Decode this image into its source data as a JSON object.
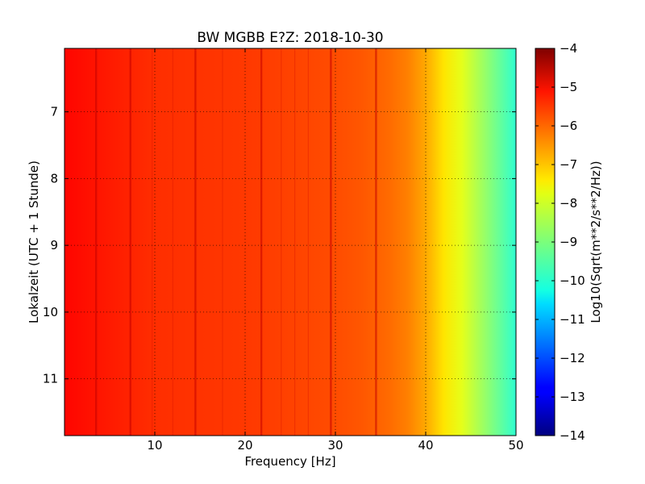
{
  "chart_data": {
    "type": "heatmap",
    "title": "BW MGBB E?Z: 2018-10-30",
    "xlabel": "Frequency [Hz]",
    "ylabel": "Lokalzeit (UTC + 1 Stunde)",
    "xlim": [
      0,
      50
    ],
    "ylim": [
      11.85,
      6.05
    ],
    "x_ticks": [
      10,
      20,
      30,
      40,
      50
    ],
    "y_ticks": [
      7,
      8,
      9,
      10,
      11
    ],
    "grid": true,
    "colormap": "jet",
    "colorbar": {
      "label": "Log10(Sqrt(m**2/s**2/Hz))",
      "range": [
        -14,
        -4
      ],
      "ticks": [
        -4,
        -5,
        -6,
        -7,
        -8,
        -9,
        -10,
        -11,
        -12,
        -13,
        -14
      ]
    },
    "spectrum_profile": {
      "frequency_hz": [
        0,
        5,
        10,
        15,
        20,
        25,
        30,
        33,
        36,
        38,
        40,
        42,
        44,
        46,
        48,
        50
      ],
      "log10_amplitude": [
        -5.3,
        -5.5,
        -5.7,
        -5.75,
        -5.8,
        -5.9,
        -6.0,
        -6.1,
        -6.3,
        -6.5,
        -6.9,
        -7.5,
        -8.0,
        -8.6,
        -9.2,
        -9.8
      ]
    },
    "strong_lines_hz": [
      3.5,
      7.3,
      14.5,
      21.8,
      29.5,
      34.5
    ],
    "weak_lines_hz": [
      9.7,
      12,
      17.5,
      24,
      25.5,
      27
    ]
  }
}
